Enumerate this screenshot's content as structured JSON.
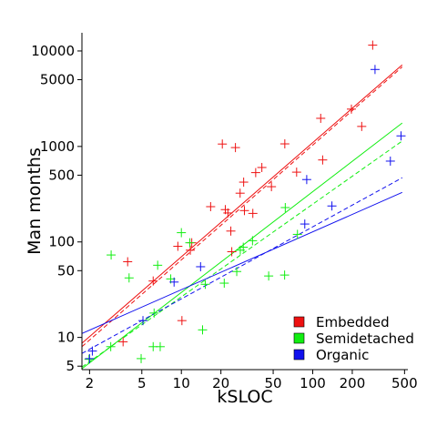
{
  "chart_data": {
    "type": "scatter",
    "title": "",
    "xlabel": "kSLOC",
    "ylabel": "Man months",
    "x_scale": "log",
    "y_scale": "log",
    "xlim": [
      1.75,
      530
    ],
    "ylim": [
      4.6,
      15500
    ],
    "x_ticks": [
      2,
      5,
      10,
      20,
      50,
      100,
      200,
      500
    ],
    "x_tick_labels": [
      "2",
      "5",
      "10",
      "20",
      "50",
      "100",
      "200",
      "500"
    ],
    "y_ticks": [
      5,
      10,
      50,
      100,
      500,
      1000,
      5000,
      10000
    ],
    "y_tick_labels": [
      "5",
      "10",
      "50",
      "100",
      "500",
      "1000",
      "5000",
      "10000"
    ],
    "grid": false,
    "legend_position": "bottom-right",
    "series": [
      {
        "name": "Embedded",
        "color": "#ee1111",
        "points": [
          [
            3.6,
            9
          ],
          [
            3.9,
            62
          ],
          [
            6.1,
            39
          ],
          [
            10.1,
            15
          ],
          [
            9.4,
            90
          ],
          [
            12.0,
            98
          ],
          [
            11.7,
            82
          ],
          [
            16.7,
            234
          ],
          [
            20.5,
            1060
          ],
          [
            21.6,
            218
          ],
          [
            22.6,
            201
          ],
          [
            24.2,
            79
          ],
          [
            23.8,
            130
          ],
          [
            25.8,
            973
          ],
          [
            28.0,
            324
          ],
          [
            29.8,
            423
          ],
          [
            30.2,
            213
          ],
          [
            35.0,
            199
          ],
          [
            36.8,
            532
          ],
          [
            41.0,
            602
          ],
          [
            48.5,
            379
          ],
          [
            61.3,
            1064
          ],
          [
            75.4,
            538
          ],
          [
            115,
            1970
          ],
          [
            119,
            722
          ],
          [
            197,
            2460
          ],
          [
            236,
            1620
          ],
          [
            286,
            11500
          ]
        ]
      },
      {
        "name": "Semidetached",
        "color": "#11ee11",
        "points": [
          [
            1.98,
            5.9
          ],
          [
            2.9,
            8
          ],
          [
            2.92,
            73
          ],
          [
            4.0,
            42
          ],
          [
            4.94,
            6
          ],
          [
            6.2,
            18
          ],
          [
            6.1,
            8
          ],
          [
            6.6,
            57
          ],
          [
            6.9,
            8
          ],
          [
            8.3,
            41
          ],
          [
            10.0,
            125
          ],
          [
            11.6,
            98
          ],
          [
            15.2,
            36
          ],
          [
            14.5,
            12
          ],
          [
            21.2,
            37
          ],
          [
            26.4,
            49
          ],
          [
            28.1,
            82
          ],
          [
            29.6,
            88
          ],
          [
            34.8,
            103
          ],
          [
            46.2,
            44
          ],
          [
            61.1,
            45
          ],
          [
            61.8,
            229
          ],
          [
            76.5,
            120
          ]
        ]
      },
      {
        "name": "Organic",
        "color": "#1111ee",
        "points": [
          [
            2.1,
            7.2
          ],
          [
            2.0,
            6.0
          ],
          [
            5.1,
            15
          ],
          [
            8.8,
            38
          ],
          [
            14.0,
            55
          ],
          [
            90.0,
            450
          ],
          [
            87.0,
            154
          ],
          [
            140,
            238
          ],
          [
            298,
            6400
          ],
          [
            390,
            702
          ],
          [
            470,
            1290
          ]
        ]
      }
    ],
    "fit_lines": [
      {
        "series": "Embedded",
        "style": "solid",
        "color": "#ee1111",
        "from": [
          1.75,
          8.7
        ],
        "to": [
          480,
          7150
        ]
      },
      {
        "series": "Embedded",
        "style": "dashed",
        "color": "#ee1111",
        "from": [
          1.75,
          8.0
        ],
        "to": [
          480,
          6800
        ]
      },
      {
        "series": "Semidetached",
        "style": "solid",
        "color": "#11ee11",
        "from": [
          1.75,
          4.7
        ],
        "to": [
          480,
          1760
        ]
      },
      {
        "series": "Semidetached",
        "style": "dashed",
        "color": "#11ee11",
        "from": [
          1.75,
          4.9
        ],
        "to": [
          480,
          1140
        ]
      },
      {
        "series": "Organic",
        "style": "solid",
        "color": "#1111ee",
        "from": [
          1.75,
          11.0
        ],
        "to": [
          480,
          330
        ]
      },
      {
        "series": "Organic",
        "style": "dashed",
        "color": "#1111ee",
        "from": [
          1.75,
          6.8
        ],
        "to": [
          480,
          470
        ]
      }
    ]
  }
}
